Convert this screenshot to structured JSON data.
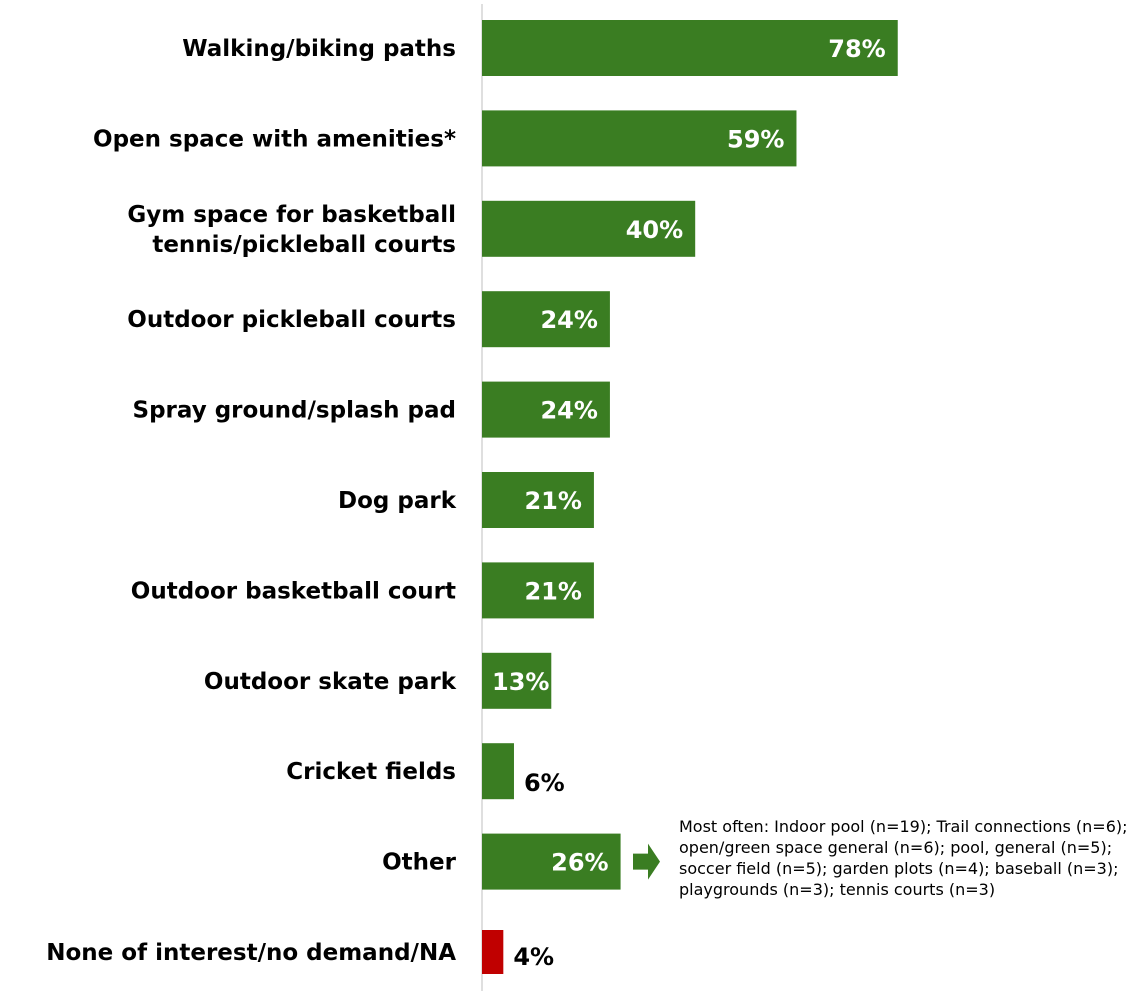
{
  "chart_data": {
    "type": "bar",
    "orientation": "horizontal",
    "categories": [
      "Walking/biking paths",
      "Open space with amenities*",
      "Gym space for basketball\ntennis/pickleball courts",
      "Outdoor pickleball courts",
      "Spray ground/splash pad",
      "Dog park",
      "Outdoor basketball court",
      "Outdoor skate park",
      "Cricket fields",
      "Other",
      "None of interest/no demand/NA"
    ],
    "values": [
      78,
      59,
      40,
      24,
      24,
      21,
      21,
      13,
      6,
      26,
      4
    ],
    "value_labels": [
      "78%",
      "59%",
      "40%",
      "24%",
      "24%",
      "21%",
      "21%",
      "13%",
      "6%",
      "26%",
      "4%"
    ],
    "bar_colors": [
      "#3a7d22",
      "#3a7d22",
      "#3a7d22",
      "#3a7d22",
      "#3a7d22",
      "#3a7d22",
      "#3a7d22",
      "#3a7d22",
      "#3a7d22",
      "#3a7d22",
      "#c00000"
    ],
    "label_colors": [
      "#ffffff",
      "#ffffff",
      "#ffffff",
      "#ffffff",
      "#ffffff",
      "#ffffff",
      "#ffffff",
      "#ffffff",
      "#000000",
      "#ffffff",
      "#000000"
    ],
    "xlim": [
      0,
      100
    ],
    "grid": false,
    "legend": "none"
  },
  "annotation": {
    "arrow_color": "#3a7d22",
    "points_to": "Other",
    "text": "Most often:  Indoor pool (n=19); Trail connections (n=6); open/green space general (n=6); pool, general (n=5); soccer field (n=5); garden plots (n=4); baseball (n=3); playgrounds (n=3); tennis courts (n=3)"
  },
  "colors": {
    "axis_line": "#bfbfbf"
  }
}
